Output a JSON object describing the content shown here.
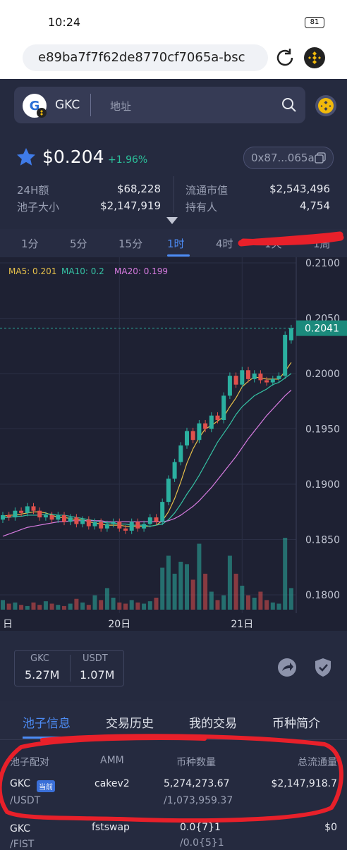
{
  "status": {
    "time": "10:24",
    "battery": "81"
  },
  "browser": {
    "url": "e89ba7f7f62de8770cf7065a-bsc"
  },
  "header": {
    "token": "GKC",
    "search_placeholder": "地址"
  },
  "price": {
    "value": "$0.204",
    "change": "+1.96%",
    "address": "0x87...065a"
  },
  "stats": [
    {
      "label": "24H额",
      "value": "$68,228"
    },
    {
      "label": "流通市值",
      "value": "$2,543,496"
    },
    {
      "label": "池子大小",
      "value": "$2,147,919"
    },
    {
      "label": "持有人",
      "value": "4,754"
    }
  ],
  "intervals": {
    "items": [
      "1分",
      "5分",
      "15分",
      "1时",
      "4时",
      "1天",
      "1周"
    ],
    "active": 3
  },
  "chart": {
    "type": "candlestick",
    "ylim": [
      0.18,
      0.21
    ],
    "yticks": [
      {
        "value": 0.21,
        "label": "0.2100"
      },
      {
        "value": 0.205,
        "label": "0.2050"
      },
      {
        "value": 0.2,
        "label": "0.2000"
      },
      {
        "value": 0.195,
        "label": "0.1950"
      },
      {
        "value": 0.19,
        "label": "0.1900"
      },
      {
        "value": 0.185,
        "label": "0.1850"
      },
      {
        "value": 0.18,
        "label": "0.1800"
      }
    ],
    "current": {
      "value": 0.2041,
      "label": "0.2041"
    },
    "days": [
      {
        "index": 0,
        "label": "日"
      },
      {
        "index": 19,
        "label": "20日"
      },
      {
        "index": 39,
        "label": "21日"
      }
    ],
    "up_color": "#2bb0a0",
    "down_color": "#e0504c",
    "open": [
      0.1868,
      0.1872,
      0.187,
      0.1876,
      0.1874,
      0.188,
      0.1876,
      0.187,
      0.1872,
      0.1868,
      0.1872,
      0.1866,
      0.187,
      0.1864,
      0.1868,
      0.1862,
      0.1866,
      0.186,
      0.1864,
      0.1866,
      0.186,
      0.1858,
      0.1866,
      0.186,
      0.1864,
      0.187,
      0.1866,
      0.1884,
      0.1905,
      0.192,
      0.1935,
      0.1948,
      0.194,
      0.1955,
      0.195,
      0.1962,
      0.1958,
      0.198,
      0.1998,
      0.199,
      0.2003,
      0.1995,
      0.2,
      0.1994,
      0.1992,
      0.1995,
      0.1998,
      0.203
    ],
    "close": [
      0.1872,
      0.187,
      0.1876,
      0.1874,
      0.188,
      0.1876,
      0.187,
      0.1872,
      0.1868,
      0.1872,
      0.1866,
      0.187,
      0.1864,
      0.1868,
      0.1862,
      0.1866,
      0.186,
      0.1864,
      0.1866,
      0.186,
      0.1858,
      0.1866,
      0.186,
      0.1864,
      0.187,
      0.1866,
      0.1884,
      0.1905,
      0.192,
      0.1935,
      0.1948,
      0.194,
      0.1955,
      0.195,
      0.1962,
      0.1958,
      0.198,
      0.1998,
      0.199,
      0.2003,
      0.1995,
      0.2,
      0.1994,
      0.1992,
      0.1995,
      0.1998,
      0.2035,
      0.2041
    ],
    "high": [
      0.1875,
      0.1875,
      0.1879,
      0.1879,
      0.1883,
      0.1883,
      0.1879,
      0.1875,
      0.1875,
      0.1875,
      0.1875,
      0.1873,
      0.1873,
      0.1871,
      0.1871,
      0.1869,
      0.1869,
      0.1867,
      0.1869,
      0.1869,
      0.1863,
      0.1869,
      0.1869,
      0.1867,
      0.1873,
      0.1873,
      0.1887,
      0.1908,
      0.1923,
      0.1938,
      0.1951,
      0.1951,
      0.1958,
      0.1958,
      0.1965,
      0.1965,
      0.1983,
      0.2001,
      0.2001,
      0.2006,
      0.2006,
      0.2003,
      0.2003,
      0.1997,
      0.1998,
      0.2001,
      0.2038,
      0.2044
    ],
    "low": [
      0.1865,
      0.1867,
      0.1867,
      0.1871,
      0.1871,
      0.1873,
      0.1867,
      0.1867,
      0.1865,
      0.1865,
      0.1863,
      0.1863,
      0.1861,
      0.1861,
      0.1859,
      0.1859,
      0.1857,
      0.1857,
      0.1861,
      0.1857,
      0.1855,
      0.1855,
      0.1857,
      0.1857,
      0.1861,
      0.1863,
      0.1863,
      0.1881,
      0.1902,
      0.1917,
      0.1932,
      0.1937,
      0.1937,
      0.1947,
      0.1947,
      0.1955,
      0.1955,
      0.1977,
      0.1987,
      0.1987,
      0.1992,
      0.1992,
      0.1991,
      0.1989,
      0.1989,
      0.1992,
      0.1995,
      0.2027
    ],
    "volume": [
      8,
      5,
      6,
      4,
      3,
      6,
      4,
      7,
      5,
      4,
      3,
      5,
      9,
      6,
      4,
      12,
      8,
      18,
      10,
      6,
      5,
      8,
      6,
      5,
      7,
      10,
      35,
      45,
      30,
      40,
      38,
      25,
      55,
      30,
      15,
      8,
      12,
      45,
      30,
      20,
      12,
      10,
      15,
      8,
      6,
      5,
      60,
      18
    ],
    "ma": [
      {
        "name": "MA5: 0.201",
        "color": "#e6c04a",
        "values": [
          0.1871,
          0.1872,
          0.1872,
          0.1873,
          0.1874,
          0.1875,
          0.1875,
          0.1874,
          0.1872,
          0.187,
          0.187,
          0.1869,
          0.1868,
          0.1868,
          0.1866,
          0.1865,
          0.1864,
          0.1863,
          0.1863,
          0.1863,
          0.1862,
          0.1862,
          0.1862,
          0.1862,
          0.1862,
          0.1863,
          0.1867,
          0.1875,
          0.1887,
          0.1902,
          0.1919,
          0.1932,
          0.1942,
          0.195,
          0.1953,
          0.1957,
          0.1961,
          0.197,
          0.1978,
          0.1988,
          0.1993,
          0.1997,
          0.1996,
          0.1995,
          0.1995,
          0.1995,
          0.2002,
          0.201
        ]
      },
      {
        "name": "MA10: 0.2",
        "color": "#35c2a4",
        "values": [
          0.187,
          0.187,
          0.1871,
          0.1871,
          0.1872,
          0.1872,
          0.1872,
          0.1873,
          0.1873,
          0.1872,
          0.1872,
          0.1871,
          0.187,
          0.1869,
          0.1868,
          0.1867,
          0.1866,
          0.1865,
          0.1865,
          0.1864,
          0.1864,
          0.1863,
          0.1863,
          0.1863,
          0.1862,
          0.1863,
          0.1864,
          0.1868,
          0.1874,
          0.1882,
          0.1891,
          0.1899,
          0.1908,
          0.1918,
          0.1928,
          0.1938,
          0.1946,
          0.1954,
          0.1963,
          0.197,
          0.1975,
          0.198,
          0.1983,
          0.1986,
          0.199,
          0.1992,
          0.1996,
          0.2
        ]
      },
      {
        "name": "MA20: 0.199",
        "color": "#d77be0",
        "values": [
          0.1853,
          0.1855,
          0.1857,
          0.1859,
          0.1861,
          0.1862,
          0.1863,
          0.1864,
          0.1865,
          0.1866,
          0.1866,
          0.1867,
          0.1867,
          0.1867,
          0.1867,
          0.1867,
          0.1867,
          0.1866,
          0.1866,
          0.1866,
          0.1866,
          0.1866,
          0.1866,
          0.1866,
          0.1866,
          0.1866,
          0.1866,
          0.1867,
          0.1869,
          0.1872,
          0.1876,
          0.188,
          0.1885,
          0.1891,
          0.1897,
          0.1904,
          0.1911,
          0.1918,
          0.1925,
          0.1933,
          0.1941,
          0.1948,
          0.1955,
          0.1962,
          0.1968,
          0.1974,
          0.198,
          0.1985
        ]
      }
    ]
  },
  "reserves": [
    {
      "token": "GKC",
      "amount": "5.27M"
    },
    {
      "token": "USDT",
      "amount": "1.07M"
    }
  ],
  "panel_tabs": {
    "items": [
      "池子信息",
      "交易历史",
      "我的交易",
      "币种简介"
    ],
    "active": 0
  },
  "table": {
    "headers": [
      "池子配对",
      "AMM",
      "币种数量",
      "总流通量"
    ],
    "rows": [
      {
        "pair": "GKC",
        "badge": "当前",
        "quote": "/USDT",
        "amm": "cakev2",
        "amount": "5,274,273.67",
        "quote_amount": "/1,073,959.37",
        "total": "$2,147,918.7"
      },
      {
        "pair": "GKC",
        "quote": "/FIST",
        "amm": "fstswap",
        "amount": "0.0{7}1",
        "quote_amount": "/0.0{5}1",
        "total": "$0"
      }
    ]
  }
}
